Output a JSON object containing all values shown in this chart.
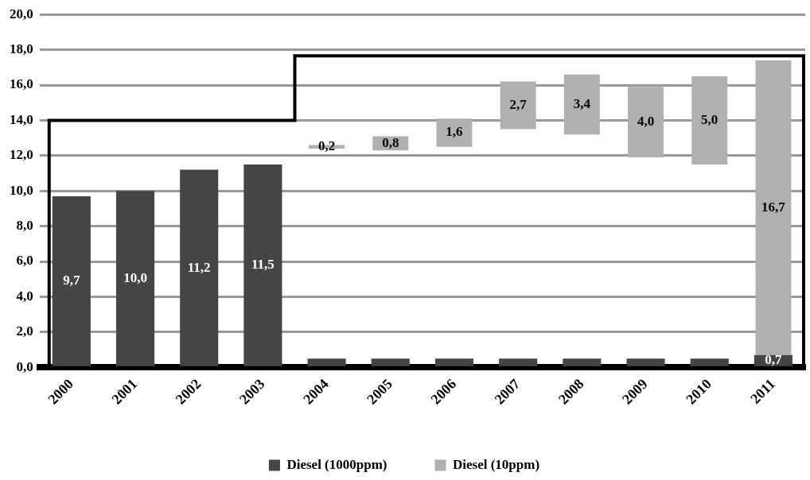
{
  "chart_data": {
    "type": "bar",
    "categories": [
      "2000",
      "2001",
      "2002",
      "2003",
      "2004",
      "2005",
      "2006",
      "2007",
      "2008",
      "2009",
      "2010",
      "2011"
    ],
    "series": [
      {
        "name": "Diesel (1000ppm)",
        "color": "#454545",
        "values": [
          9.7,
          10.0,
          11.2,
          11.5,
          0.5,
          0.5,
          0.5,
          0.5,
          0.5,
          0.5,
          0.5,
          0.7
        ],
        "value_labels": [
          "9,7",
          "10,0",
          "11,2",
          "11,5",
          null,
          null,
          null,
          null,
          null,
          null,
          null,
          "0,7"
        ]
      },
      {
        "name": "Diesel (10ppm)",
        "color": "#b0b0b0",
        "values": [
          null,
          null,
          null,
          null,
          0.2,
          0.8,
          1.6,
          2.7,
          3.4,
          4.0,
          5.0,
          16.7
        ],
        "base": [
          null,
          null,
          null,
          null,
          12.4,
          12.3,
          12.5,
          13.5,
          13.2,
          11.9,
          11.5,
          0.7
        ],
        "value_labels": [
          null,
          null,
          null,
          null,
          "0,2",
          "0,8",
          "1,6",
          "2,7",
          "3,4",
          "4,0",
          "5,0",
          "16,7"
        ]
      }
    ],
    "ylim": [
      0,
      20
    ],
    "yticks": [
      {
        "value": 0,
        "label": "0,0"
      },
      {
        "value": 2,
        "label": "2,0"
      },
      {
        "value": 4,
        "label": "4,0"
      },
      {
        "value": 6,
        "label": "6,0"
      },
      {
        "value": 8,
        "label": "8,0"
      },
      {
        "value": 10,
        "label": "10,0"
      },
      {
        "value": 12,
        "label": "12,0"
      },
      {
        "value": 14,
        "label": "14,0"
      },
      {
        "value": 16,
        "label": "16,0"
      },
      {
        "value": 18,
        "label": "18,0"
      },
      {
        "value": 20,
        "label": "20,0"
      }
    ],
    "grid": "y",
    "legend": "bottom"
  }
}
